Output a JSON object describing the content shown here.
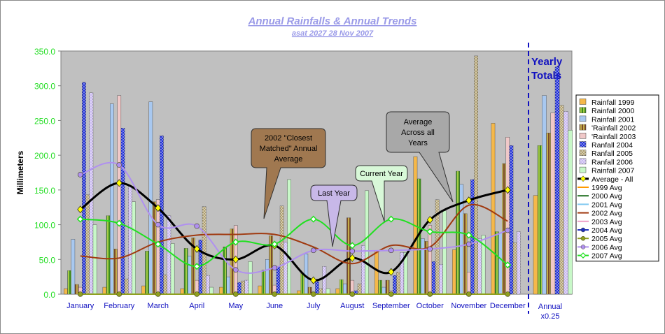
{
  "chart_data": {
    "type": "bar",
    "title": "Annual Rainfalls & Annual Trends",
    "subtitle": "asat 2027 28 Nov 2007",
    "ylabel": "Millimeters",
    "ylim": [
      0,
      350
    ],
    "yticks": [
      "0.0",
      "50.0",
      "100.0",
      "150.0",
      "200.0",
      "250.0",
      "300.0",
      "350.0"
    ],
    "categories": [
      "January",
      "February",
      "March",
      "April",
      "May",
      "June",
      "July",
      "August",
      "September",
      "October",
      "November",
      "December"
    ],
    "annual_label": [
      "Annual",
      "x0.25"
    ],
    "yearly_totals_label": [
      "Yearly",
      "Totals"
    ],
    "series": [
      {
        "name": "Rainfall 1999",
        "color": "#f5b84a",
        "pattern": "solid",
        "values": [
          8,
          10,
          12,
          8,
          10,
          12,
          5,
          8,
          62,
          198,
          64,
          246
        ],
        "annual": 142
      },
      {
        "name": "Rainfall 2000",
        "color": "#3a8c1e",
        "pattern": "stripe",
        "values": [
          34,
          113,
          62,
          66,
          68,
          35,
          30,
          21,
          20,
          166,
          177,
          90
        ],
        "annual": 214
      },
      {
        "name": "Rainfall 2001",
        "color": "#a8c8f0",
        "pattern": "solid",
        "values": [
          79,
          274,
          277,
          55,
          25,
          50,
          58,
          15,
          10,
          80,
          158,
          88
        ],
        "annual": 286
      },
      {
        "name": "'Rainfall 2002",
        "color": "#7a4a2a",
        "pattern": "stripe",
        "values": [
          14,
          65,
          133,
          81,
          94,
          84,
          10,
          110,
          20,
          76,
          116,
          188
        ],
        "annual": 232
      },
      {
        "name": "'Rainfall 2003",
        "color": "#f0c8c8",
        "pattern": "solid",
        "values": [
          10,
          286,
          136,
          20,
          99,
          13,
          3,
          20,
          5,
          99,
          32,
          226
        ],
        "annual": 261
      },
      {
        "name": "Ranfall 2004",
        "color": "#1a2ad6",
        "pattern": "check",
        "values": [
          305,
          239,
          228,
          78,
          17,
          40,
          18,
          5,
          27,
          47,
          165,
          214
        ],
        "annual": 327
      },
      {
        "name": "Ranfall 2005",
        "color": "#b0a070",
        "pattern": "check",
        "values": [
          143,
          22,
          28,
          126,
          19,
          127,
          8,
          15,
          32,
          136,
          343,
          74
        ],
        "annual": 272
      },
      {
        "name": "Ranfall 2006",
        "color": "#c8b8f0",
        "pattern": "check",
        "values": [
          290,
          155,
          113,
          27,
          20,
          75,
          40,
          70,
          60,
          43,
          80,
          90
        ],
        "annual": 263
      },
      {
        "name": "Rainfall 2007",
        "color": "#c8f8c8",
        "pattern": "solid",
        "values": [
          100,
          133,
          73,
          10,
          47,
          165,
          8,
          149,
          60,
          120,
          85,
          0
        ],
        "annual": 236
      }
    ],
    "trend_series": [
      {
        "name": "Average - All",
        "color": "#000000",
        "marker": "diamond-yellow",
        "values": [
          122,
          160,
          124,
          65,
          50,
          70,
          20,
          52,
          32,
          107,
          135,
          150
        ]
      },
      {
        "name": "1999 Avg",
        "color": "#ff9900",
        "values": []
      },
      {
        "name": "2000 Avg",
        "color": "#207020",
        "values": []
      },
      {
        "name": "2001 Avg",
        "color": "#80c8f0",
        "values": []
      },
      {
        "name": "2002 Avg",
        "color": "#a03a10",
        "values": [
          55,
          52,
          75,
          85,
          86,
          86,
          68,
          44,
          70,
          68,
          128,
          105
        ]
      },
      {
        "name": "2003 Avg",
        "color": "#f0a0c8",
        "values": []
      },
      {
        "name": "2004 Avg",
        "color": "#2030c0",
        "marker": "circle",
        "values": []
      },
      {
        "name": "2005 Avg",
        "color": "#90a020",
        "marker": "circle",
        "values": [
          0,
          0,
          0,
          0,
          0,
          0,
          0,
          0,
          0,
          0,
          0,
          0
        ]
      },
      {
        "name": "2006 Avg",
        "color": "#b090f0",
        "marker": "circle",
        "values": [
          172,
          186,
          100,
          98,
          35,
          38,
          63,
          62,
          63,
          65,
          72,
          92
        ]
      },
      {
        "name": "2007 Avg",
        "color": "#20e020",
        "marker": "diamond-open",
        "values": [
          108,
          102,
          72,
          40,
          75,
          72,
          108,
          70,
          108,
          90,
          85,
          42
        ]
      }
    ],
    "annotations": [
      {
        "text": [
          "2002 \"Closest",
          "Matched\" Annual",
          "Average"
        ],
        "fill": "#a07850"
      },
      {
        "text": [
          "Last Year"
        ],
        "fill": "#c8b8e8"
      },
      {
        "text": [
          "Current Year"
        ],
        "fill": "#d8f8d8"
      },
      {
        "text": [
          "Average",
          "Across all",
          "Years"
        ],
        "fill": "#a8a8a8"
      }
    ],
    "legend_position": "right",
    "grid": false
  }
}
